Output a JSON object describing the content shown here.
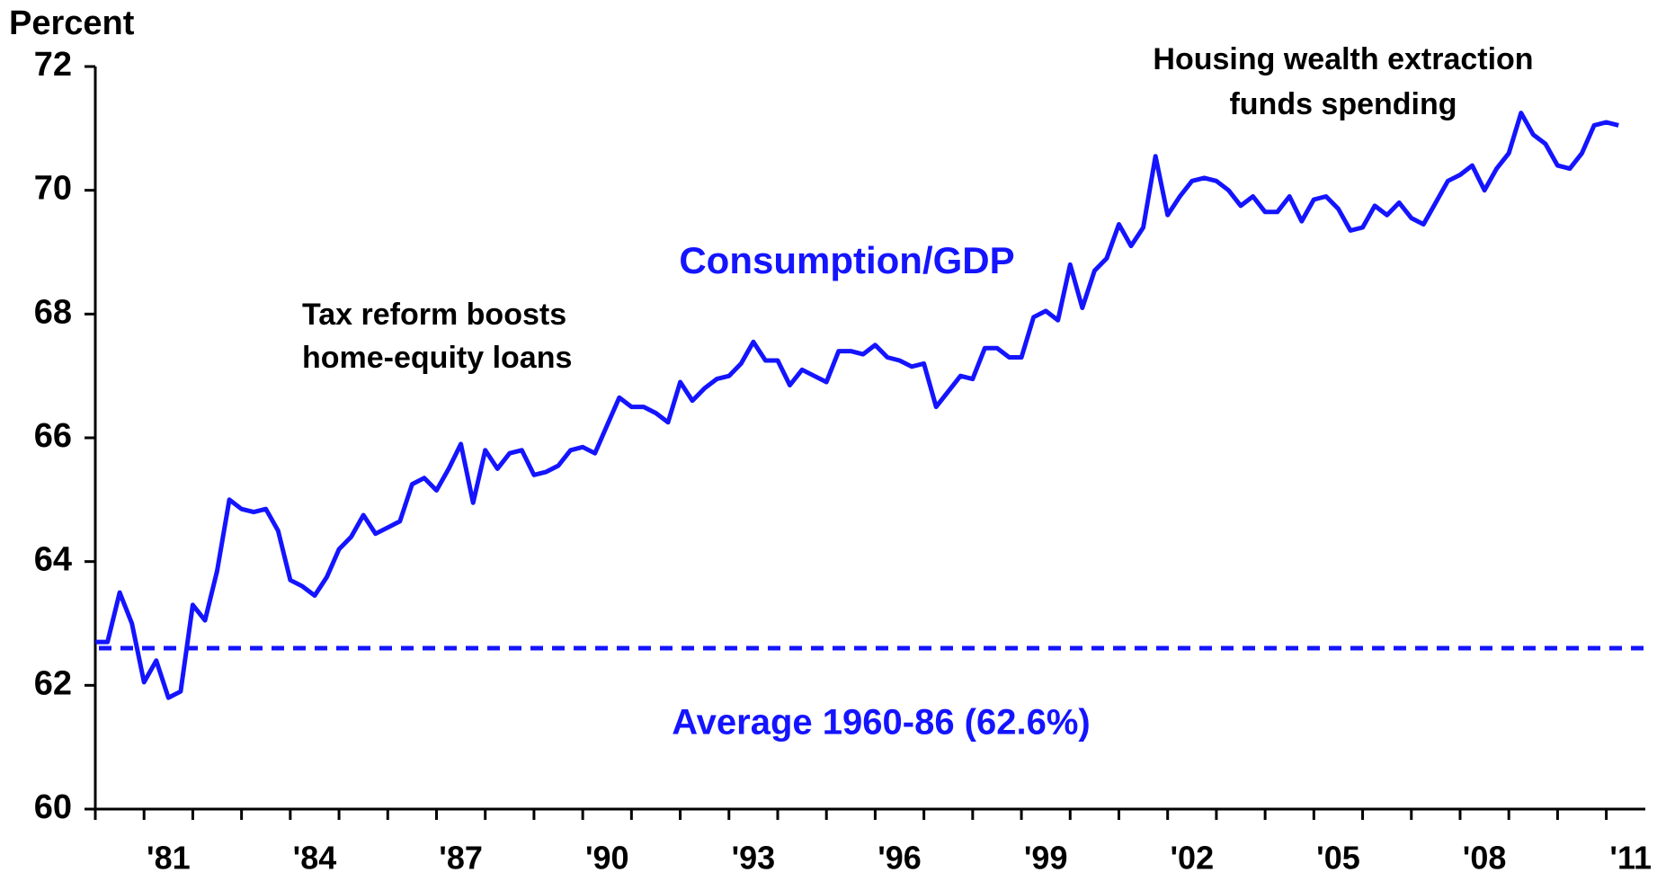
{
  "chart_data": {
    "type": "line",
    "y_label": "Percent",
    "xlim": [
      1980,
      2011.8
    ],
    "ylim": [
      60,
      72
    ],
    "yticks": [
      60,
      62,
      64,
      66,
      68,
      70,
      72
    ],
    "xticks": [
      {
        "value": 1981.5,
        "label": "'81"
      },
      {
        "value": 1984.5,
        "label": "'84"
      },
      {
        "value": 1987.5,
        "label": "'87"
      },
      {
        "value": 1990.5,
        "label": "'90"
      },
      {
        "value": 1993.5,
        "label": "'93"
      },
      {
        "value": 1996.5,
        "label": "'96"
      },
      {
        "value": 1999.5,
        "label": "'99"
      },
      {
        "value": 2002.5,
        "label": "'02"
      },
      {
        "value": 2005.5,
        "label": "'05"
      },
      {
        "value": 2008.5,
        "label": "'08"
      },
      {
        "value": 2011.5,
        "label": "'11"
      }
    ],
    "xminorticks": [
      1980,
      1981,
      1982,
      1983,
      1984,
      1985,
      1986,
      1987,
      1988,
      1989,
      1990,
      1991,
      1992,
      1993,
      1994,
      1995,
      1996,
      1997,
      1998,
      1999,
      2000,
      2001,
      2002,
      2003,
      2004,
      2005,
      2006,
      2007,
      2008,
      2009,
      2010,
      2011
    ],
    "x": [
      1980,
      1980.25,
      1980.5,
      1980.75,
      1981,
      1981.25,
      1981.5,
      1981.75,
      1982,
      1982.25,
      1982.5,
      1982.75,
      1983,
      1983.25,
      1983.5,
      1983.75,
      1984,
      1984.25,
      1984.5,
      1984.75,
      1985,
      1985.25,
      1985.5,
      1985.75,
      1986,
      1986.25,
      1986.5,
      1986.75,
      1987,
      1987.25,
      1987.5,
      1987.75,
      1988,
      1988.25,
      1988.5,
      1988.75,
      1989,
      1989.25,
      1989.5,
      1989.75,
      1990,
      1990.25,
      1990.5,
      1990.75,
      1991,
      1991.25,
      1991.5,
      1991.75,
      1992,
      1992.25,
      1992.5,
      1992.75,
      1993,
      1993.25,
      1993.5,
      1993.75,
      1994,
      1994.25,
      1994.5,
      1994.75,
      1995,
      1995.25,
      1995.5,
      1995.75,
      1996,
      1996.25,
      1996.5,
      1996.75,
      1997,
      1997.25,
      1997.5,
      1997.75,
      1998,
      1998.25,
      1998.5,
      1998.75,
      1999,
      1999.25,
      1999.5,
      1999.75,
      2000,
      2000.25,
      2000.5,
      2000.75,
      2001,
      2001.25,
      2001.5,
      2001.75,
      2002,
      2002.25,
      2002.5,
      2002.75,
      2003,
      2003.25,
      2003.5,
      2003.75,
      2004,
      2004.25,
      2004.5,
      2004.75,
      2005,
      2005.25,
      2005.5,
      2005.75,
      2006,
      2006.25,
      2006.5,
      2006.75,
      2007,
      2007.25,
      2007.5,
      2007.75,
      2008,
      2008.25,
      2008.5,
      2008.75,
      2009,
      2009.25,
      2009.5,
      2009.75,
      2010,
      2010.25,
      2010.5,
      2010.75,
      2011,
      2011.25
    ],
    "series": [
      {
        "name": "Consumption/GDP",
        "color": "#1414ff",
        "values": [
          62.7,
          62.7,
          63.5,
          63.0,
          62.05,
          62.4,
          61.8,
          61.9,
          63.3,
          63.05,
          63.85,
          65.0,
          64.85,
          64.8,
          64.85,
          64.5,
          63.7,
          63.6,
          63.45,
          63.75,
          64.2,
          64.4,
          64.75,
          64.45,
          64.55,
          64.65,
          65.25,
          65.35,
          65.15,
          65.5,
          65.9,
          64.95,
          65.8,
          65.5,
          65.75,
          65.8,
          65.4,
          65.45,
          65.55,
          65.8,
          65.85,
          65.75,
          66.2,
          66.65,
          66.5,
          66.5,
          66.4,
          66.25,
          66.9,
          66.6,
          66.8,
          66.95,
          67.0,
          67.2,
          67.55,
          67.25,
          67.25,
          66.85,
          67.1,
          67.0,
          66.9,
          67.4,
          67.4,
          67.35,
          67.5,
          67.3,
          67.25,
          67.15,
          67.2,
          66.5,
          66.75,
          67.0,
          66.95,
          67.45,
          67.45,
          67.3,
          67.3,
          67.95,
          68.05,
          67.9,
          68.8,
          68.1,
          68.7,
          68.9,
          69.45,
          69.1,
          69.4,
          70.55,
          69.6,
          69.9,
          70.15,
          70.2,
          70.15,
          70.0,
          69.75,
          69.9,
          69.65,
          69.65,
          69.9,
          69.5,
          69.85,
          69.9,
          69.7,
          69.35,
          69.4,
          69.75,
          69.6,
          69.8,
          69.55,
          69.45,
          69.8,
          70.15,
          70.25,
          70.4,
          70.0,
          70.35,
          70.6,
          71.25,
          70.9,
          70.75,
          70.4,
          70.35,
          70.6,
          71.05,
          71.1,
          71.05
        ]
      }
    ],
    "reference_line": {
      "value": 62.6,
      "label": "Average 1960-86 (62.6%)",
      "color": "#1414ff"
    },
    "annotations": [
      {
        "lines": [
          "Tax reform boosts",
          "home-equity loans"
        ]
      },
      {
        "lines": [
          "Housing wealth extraction",
          "funds spending"
        ]
      }
    ]
  }
}
